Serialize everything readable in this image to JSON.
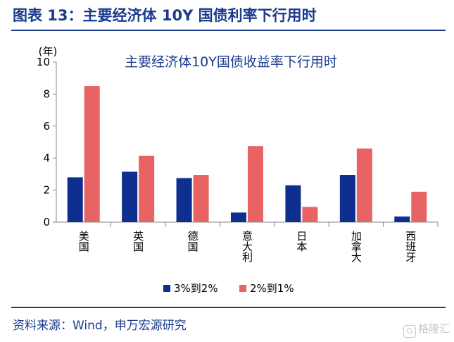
{
  "figure_title": "图表 13：主要经济体 10Y 国债利率下行用时",
  "source": "资料来源：Wind，申万宏源研究",
  "watermark": "格隆汇",
  "watermark_glyph": "G",
  "colors": {
    "brand": "#1a3a8c",
    "series1": "#0e2f8f",
    "series2": "#e86464"
  },
  "chart_data": {
    "type": "bar",
    "title": "主要经济体10Y国债收益率下行用时",
    "ylabel": "(年)",
    "xlabel": "",
    "ylim": [
      0,
      10
    ],
    "yticks": [
      0,
      2,
      4,
      6,
      8,
      10
    ],
    "categories": [
      "美国",
      "英国",
      "德国",
      "意大利",
      "日本",
      "加拿大",
      "西班牙"
    ],
    "series": [
      {
        "name": "3%到2%",
        "values": [
          2.8,
          3.15,
          2.75,
          0.6,
          2.3,
          2.95,
          0.35
        ]
      },
      {
        "name": "2%到1%",
        "values": [
          8.5,
          4.15,
          2.95,
          4.75,
          0.95,
          4.6,
          1.9
        ]
      }
    ],
    "legend": "bottom"
  }
}
